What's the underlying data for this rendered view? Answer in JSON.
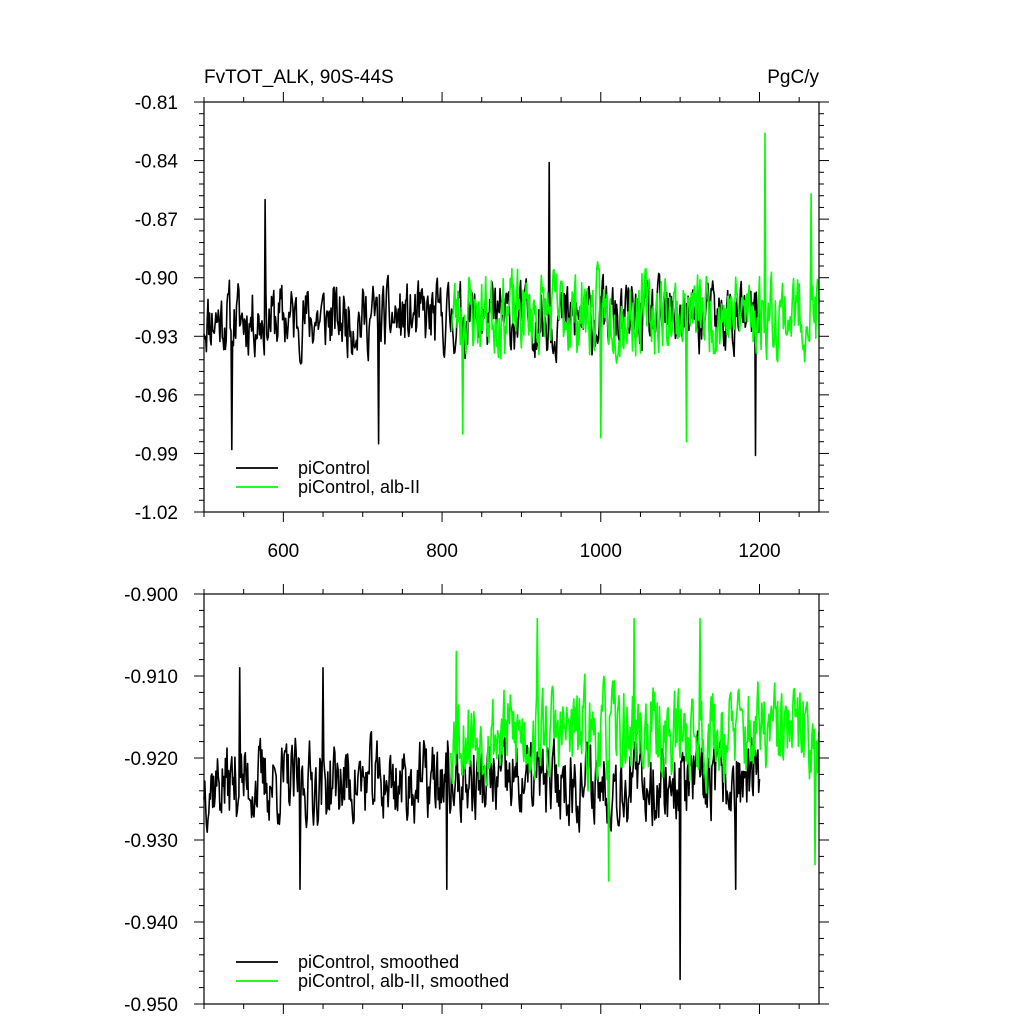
{
  "chart_data": [
    {
      "type": "line",
      "title_left": "FvTOT_ALK, 90S-44S",
      "title_right": "PgC/y",
      "xlim": [
        500,
        1275
      ],
      "ylim": [
        -1.02,
        -0.81
      ],
      "x_ticks": [
        600,
        800,
        1000,
        1200
      ],
      "x_tick_labels": [
        "600",
        "800",
        "1000",
        "1200"
      ],
      "y_ticks": [
        -1.02,
        -0.99,
        -0.96,
        -0.93,
        -0.9,
        -0.87,
        -0.84,
        -0.81
      ],
      "y_tick_labels": [
        "-1.02",
        "-0.99",
        "-0.96",
        "-0.93",
        "-0.90",
        "-0.87",
        "-0.84",
        "-0.81"
      ],
      "grid": false,
      "legend_position": "bottom-left",
      "series": [
        {
          "name": "piControl",
          "color": "#000000",
          "x_range": [
            500,
            1200
          ],
          "mean": -0.921,
          "noise": 0.02,
          "seed": 11,
          "spikes": [
            [
              535,
              -0.988
            ],
            [
              577,
              -0.86
            ],
            [
              720,
              -0.985
            ],
            [
              935,
              -0.841
            ],
            [
              1195,
              -0.991
            ]
          ]
        },
        {
          "name": "piControl, alb-II",
          "color": "#00ff00",
          "x_range": [
            811,
            1275
          ],
          "mean": -0.918,
          "noise": 0.024,
          "seed": 23,
          "spikes": [
            [
              826,
              -0.98
            ],
            [
              1000,
              -0.982
            ],
            [
              1108,
              -0.984
            ],
            [
              1207,
              -0.826
            ],
            [
              1265,
              -0.857
            ]
          ]
        }
      ]
    },
    {
      "type": "line",
      "xlim": [
        500,
        1275
      ],
      "ylim": [
        -0.95,
        -0.9
      ],
      "x_ticks": [
        600,
        800,
        1000,
        1200
      ],
      "y_ticks": [
        -0.95,
        -0.94,
        -0.93,
        -0.92,
        -0.91,
        -0.9
      ],
      "y_tick_labels": [
        "-0.950",
        "-0.940",
        "-0.930",
        "-0.920",
        "-0.910",
        "-0.900"
      ],
      "grid": false,
      "legend_position": "bottom-left",
      "series": [
        {
          "name": "piControl, smoothed",
          "color": "#000000",
          "x_range": [
            500,
            1200
          ],
          "mean": -0.923,
          "noise": 0.0055,
          "seed": 37,
          "spikes": [
            [
              545,
              -0.909
            ],
            [
              621,
              -0.936
            ],
            [
              650,
              -0.909
            ],
            [
              806,
              -0.936
            ],
            [
              1100,
              -0.947
            ],
            [
              1170,
              -0.936
            ]
          ]
        },
        {
          "name": "piControl, alb-II, smoothed",
          "color": "#00ff00",
          "x_range": [
            811,
            1275
          ],
          "mean": -0.917,
          "noise": 0.0065,
          "seed": 53,
          "spikes": [
            [
              818,
              -0.907
            ],
            [
              920,
              -0.903
            ],
            [
              1042,
              -0.903
            ],
            [
              1125,
              -0.903
            ],
            [
              1010,
              -0.935
            ],
            [
              1270,
              -0.933
            ]
          ]
        }
      ]
    }
  ]
}
